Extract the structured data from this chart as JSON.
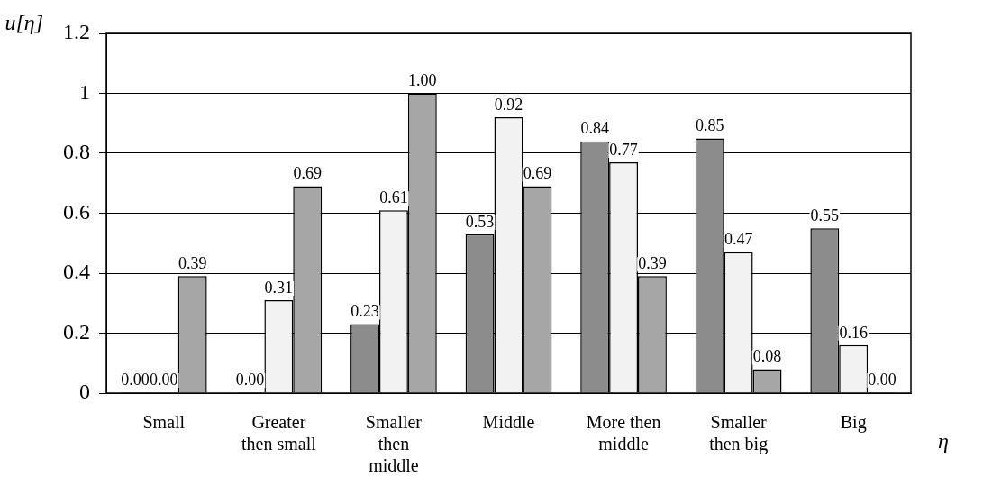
{
  "chart_data": {
    "type": "bar",
    "xlabel": "η",
    "ylabel": "u[η]",
    "categories": [
      "Small",
      "Greater then small",
      "Smaller then middle",
      "Middle",
      "More then middle",
      "Smaller then big",
      "Big"
    ],
    "series": [
      {
        "color": "#8c8c8c",
        "values": [
          0,
          0,
          0.23,
          0.53,
          0.84,
          0.85,
          0.55
        ],
        "value_labels": [
          "0.00",
          "0.00",
          "0.23",
          "0.53",
          "0.84",
          "0.85",
          "0.55"
        ]
      },
      {
        "color": "#f2f2f2",
        "values": [
          0,
          0.31,
          0.61,
          0.92,
          0.77,
          0.47,
          0.16
        ],
        "value_labels": [
          "0.00",
          "0.31",
          "0.61",
          "0.92",
          "0.77",
          "0.47",
          "0.16"
        ]
      },
      {
        "color": "#a6a6a6",
        "values": [
          0.39,
          0.69,
          1,
          0.69,
          0.39,
          0.08,
          0
        ],
        "value_labels": [
          "0.39",
          "0.69",
          "1.00",
          "0.69",
          "0.39",
          "0.08",
          "0.00"
        ]
      }
    ],
    "ylim": [
      0,
      1.2
    ],
    "yticks": [
      0,
      0.2,
      0.4,
      0.6,
      0.8,
      1,
      1.2
    ],
    "grid": "y",
    "legend": false
  }
}
